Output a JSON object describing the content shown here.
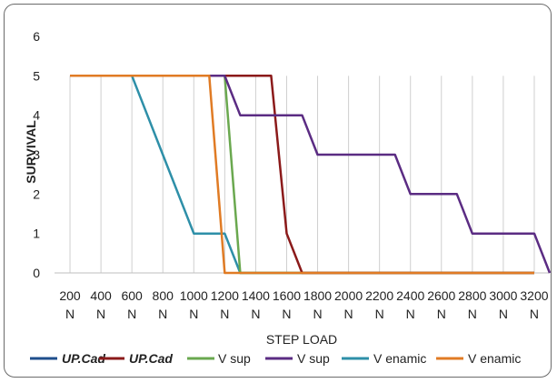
{
  "chart_data": {
    "type": "line",
    "title": "",
    "xlabel": "STEP LOAD",
    "ylabel": "SURVIVAL",
    "categories": [
      "200\nN",
      "400\nN",
      "600\nN",
      "800\nN",
      "1000\nN",
      "1200\nN",
      "1400\nN",
      "1600\nN",
      "1800\nN",
      "2000\nN",
      "2200\nN",
      "2400\nN",
      "2600\nN",
      "2800\nN",
      "3000\nN",
      "3200\nN"
    ],
    "ylim": [
      0,
      6
    ],
    "yticks": [
      "0",
      "1",
      "2",
      "3",
      "4",
      "5",
      "6"
    ],
    "grid": "vertical",
    "legend_position": "bottom",
    "series": [
      {
        "name": "UP.Cad",
        "name_style": "bold-italic",
        "color": "#1F4E8C",
        "points": [
          [
            200,
            5
          ],
          [
            1100,
            5
          ]
        ]
      },
      {
        "name": "UP.Cad",
        "name_style": "bold-italic",
        "color": "#8B1A1A",
        "points": [
          [
            200,
            5
          ],
          [
            1400,
            5
          ],
          [
            1500,
            5
          ],
          [
            1600,
            1
          ],
          [
            1700,
            0
          ],
          [
            3200,
            0
          ]
        ]
      },
      {
        "name": "V sup",
        "color": "#6AA84F",
        "points": [
          [
            200,
            5
          ],
          [
            1100,
            5
          ],
          [
            1200,
            5
          ],
          [
            1300,
            0
          ],
          [
            3200,
            0
          ]
        ]
      },
      {
        "name": "V sup",
        "color": "#5B2C83",
        "points": [
          [
            1100,
            5
          ],
          [
            1200,
            5
          ],
          [
            1300,
            4
          ],
          [
            1700,
            4
          ],
          [
            1800,
            3
          ],
          [
            2300,
            3
          ],
          [
            2400,
            2
          ],
          [
            2700,
            2
          ],
          [
            2800,
            1
          ],
          [
            3200,
            1
          ],
          [
            3300,
            0
          ]
        ]
      },
      {
        "name": "V enamic",
        "color": "#2E8FA8",
        "points": [
          [
            200,
            5
          ],
          [
            600,
            5
          ],
          [
            800,
            3
          ],
          [
            1000,
            1
          ],
          [
            1100,
            1
          ],
          [
            1200,
            1
          ],
          [
            1300,
            0
          ],
          [
            3200,
            0
          ]
        ]
      },
      {
        "name": "V enamic",
        "color": "#E07B24",
        "points": [
          [
            200,
            5
          ],
          [
            1000,
            5
          ],
          [
            1100,
            5
          ],
          [
            1200,
            0
          ],
          [
            3200,
            0
          ]
        ]
      }
    ]
  }
}
